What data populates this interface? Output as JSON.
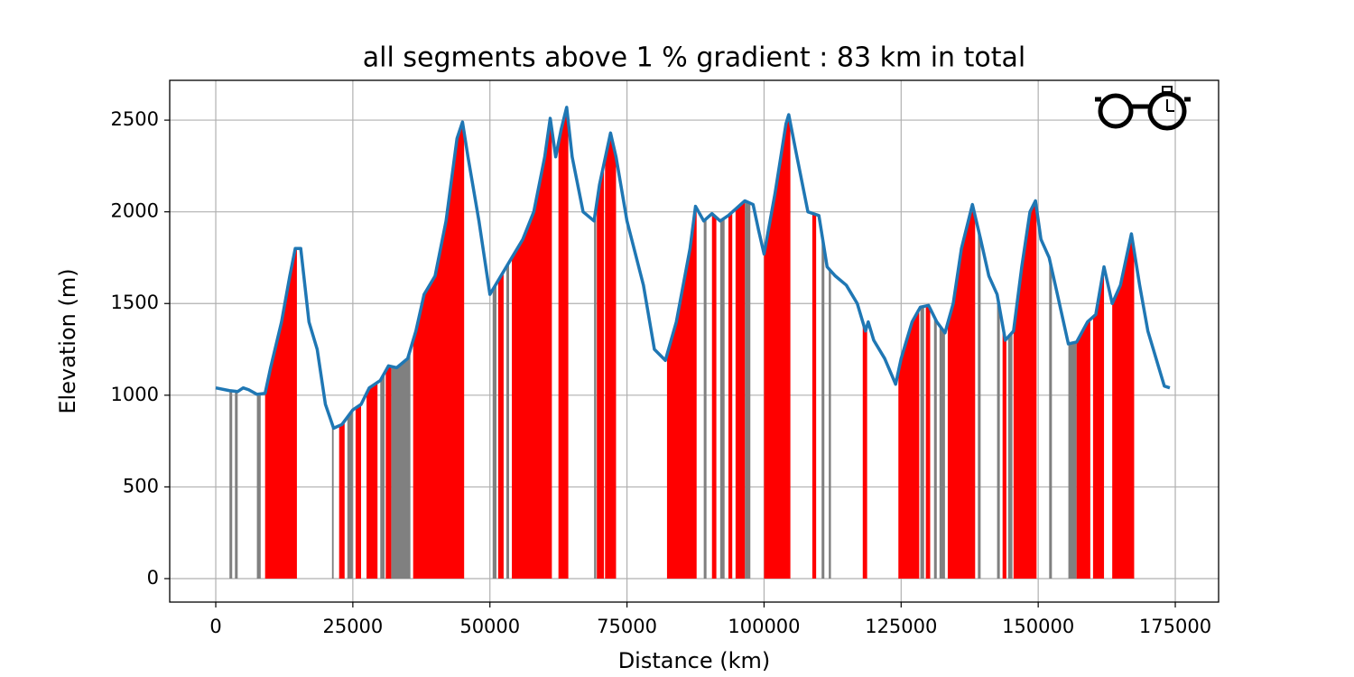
{
  "chart_data": {
    "type": "line",
    "title": "all segments above 1 % gradient : 83 km in total",
    "xlabel": "Distance (km)",
    "ylabel": "Elevation (m)",
    "x": [
      0,
      2500,
      4000,
      5000,
      6000,
      7500,
      9000,
      10000,
      12000,
      13500,
      14500,
      15500,
      17000,
      18500,
      20000,
      21500,
      23000,
      25000,
      26500,
      28000,
      30000,
      31500,
      33000,
      35000,
      36500,
      38000,
      40000,
      42000,
      44000,
      45000,
      46000,
      48000,
      50000,
      52000,
      54000,
      56000,
      58000,
      60000,
      61000,
      62000,
      63000,
      64000,
      65000,
      67000,
      69000,
      70000,
      72000,
      73000,
      75000,
      78000,
      80000,
      82000,
      84000,
      86500,
      87500,
      89000,
      90500,
      92000,
      93500,
      95000,
      96500,
      98000,
      99000,
      100000,
      102000,
      104000,
      104500,
      106000,
      108000,
      110000,
      111500,
      113000,
      115000,
      117000,
      118500,
      119000,
      120000,
      122000,
      124000,
      125000,
      127000,
      128500,
      130000,
      131500,
      133000,
      134500,
      136000,
      138000,
      139500,
      141000,
      142500,
      144000,
      145500,
      147000,
      148500,
      149500,
      150500,
      152000,
      153500,
      155500,
      157000,
      159000,
      160500,
      162000,
      163500,
      165000,
      167000,
      168500,
      170000,
      172000,
      173000,
      174000
    ],
    "series": [
      {
        "color": "#1f77b4",
        "values": [
          1040,
          1025,
          1020,
          1040,
          1030,
          1005,
          1010,
          1150,
          1400,
          1650,
          1800,
          1800,
          1400,
          1250,
          950,
          820,
          840,
          920,
          950,
          1040,
          1080,
          1160,
          1150,
          1200,
          1350,
          1550,
          1650,
          1950,
          2400,
          2490,
          2300,
          1950,
          1550,
          1650,
          1750,
          1850,
          2000,
          2300,
          2510,
          2300,
          2450,
          2570,
          2300,
          2000,
          1950,
          2150,
          2430,
          2300,
          1950,
          1600,
          1250,
          1190,
          1400,
          1800,
          2030,
          1950,
          1990,
          1950,
          1980,
          2020,
          2060,
          2040,
          1900,
          1770,
          2100,
          2480,
          2530,
          2300,
          2000,
          1980,
          1700,
          1650,
          1600,
          1500,
          1350,
          1400,
          1300,
          1200,
          1060,
          1200,
          1400,
          1480,
          1490,
          1400,
          1340,
          1500,
          1800,
          2040,
          1850,
          1650,
          1550,
          1300,
          1350,
          1700,
          2000,
          2060,
          1850,
          1750,
          1550,
          1280,
          1290,
          1400,
          1440,
          1700,
          1500,
          1600,
          1880,
          1600,
          1350,
          1150,
          1050,
          1040
        ]
      }
    ],
    "climb_segments": {
      "color": "#ff0000",
      "ranges": [
        [
          9000,
          14800
        ],
        [
          22500,
          23500
        ],
        [
          25500,
          26500
        ],
        [
          27500,
          29500
        ],
        [
          31000,
          32000
        ],
        [
          36000,
          45300
        ],
        [
          51500,
          52500
        ],
        [
          54000,
          61300
        ],
        [
          62500,
          64300
        ],
        [
          69500,
          70800
        ],
        [
          71000,
          73000
        ],
        [
          82300,
          87700
        ],
        [
          90500,
          91300
        ],
        [
          93500,
          94200
        ],
        [
          94800,
          96500
        ],
        [
          100000,
          104800
        ],
        [
          108800,
          109500
        ],
        [
          118000,
          118800
        ],
        [
          124500,
          128300
        ],
        [
          129500,
          130300
        ],
        [
          133500,
          138500
        ],
        [
          143500,
          144200
        ],
        [
          145500,
          149700
        ],
        [
          157000,
          159500
        ],
        [
          160000,
          162000
        ],
        [
          163500,
          167500
        ]
      ]
    },
    "other_segments": {
      "color": "#808080",
      "ranges": [
        [
          2500,
          3000
        ],
        [
          3500,
          4000
        ],
        [
          7500,
          8200
        ],
        [
          21200,
          21500
        ],
        [
          24000,
          25000
        ],
        [
          30000,
          30800
        ],
        [
          32000,
          35500
        ],
        [
          50500,
          51200
        ],
        [
          53000,
          53500
        ],
        [
          69000,
          69400
        ],
        [
          72500,
          73000
        ],
        [
          89000,
          89500
        ],
        [
          92000,
          92800
        ],
        [
          96500,
          97500
        ],
        [
          110500,
          111000
        ],
        [
          111800,
          112200
        ],
        [
          128500,
          129200
        ],
        [
          131000,
          131500
        ],
        [
          132000,
          133000
        ],
        [
          139000,
          139500
        ],
        [
          142500,
          143000
        ],
        [
          144500,
          145300
        ],
        [
          152000,
          152500
        ],
        [
          155500,
          157000
        ]
      ]
    },
    "xlim": [
      -8400,
      182900
    ],
    "ylim": [
      -128,
      2717
    ],
    "xticks": [
      0,
      25000,
      50000,
      75000,
      100000,
      125000,
      150000,
      175000
    ],
    "yticks": [
      0,
      500,
      1000,
      1500,
      2000,
      2500
    ],
    "grid": true
  }
}
